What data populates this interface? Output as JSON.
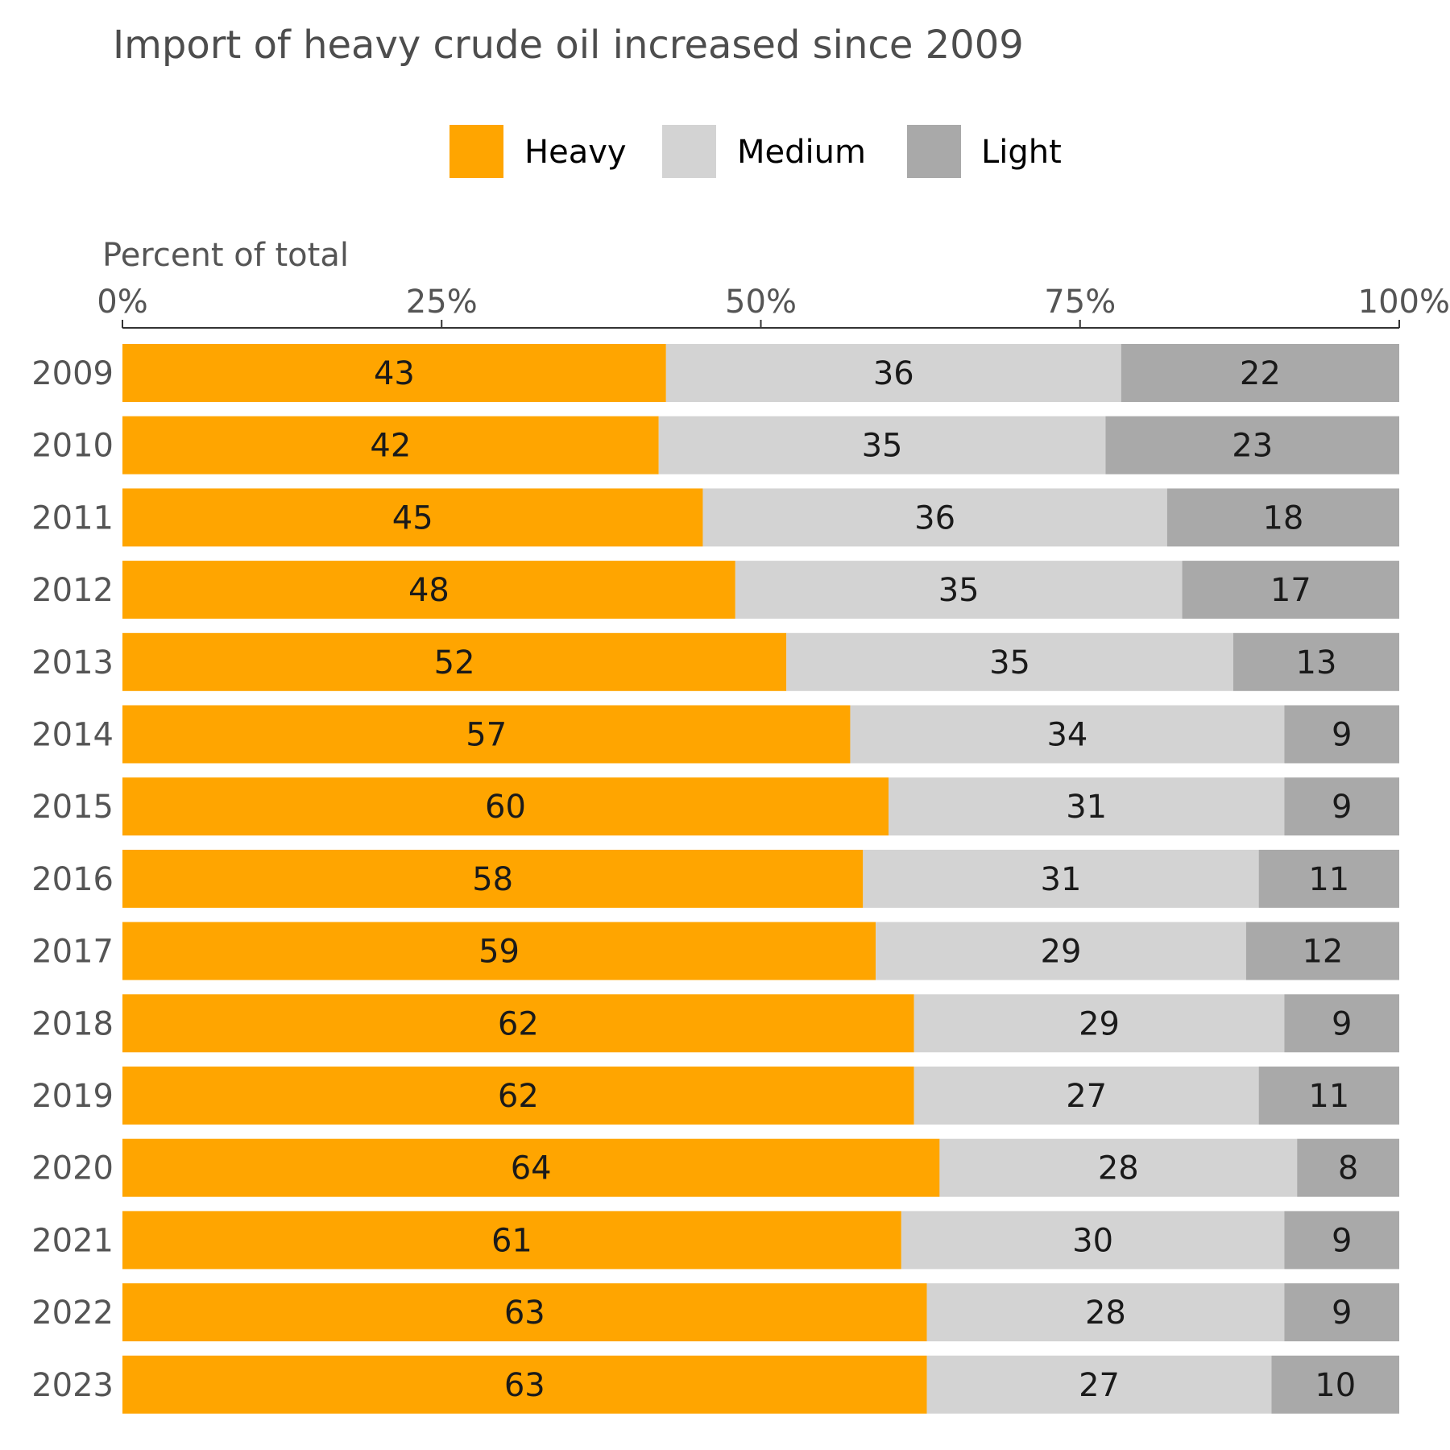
{
  "chart_data": {
    "type": "bar",
    "orientation": "horizontal",
    "stacked": true,
    "percent": true,
    "title": "Import of heavy crude oil increased since 2009",
    "axis_title": "Percent of total",
    "x_ticks": [
      "0%",
      "25%",
      "50%",
      "75%",
      "100%"
    ],
    "xlim": [
      0,
      100
    ],
    "legend_position": "top",
    "categories": [
      "2009",
      "2010",
      "2011",
      "2012",
      "2013",
      "2014",
      "2015",
      "2016",
      "2017",
      "2018",
      "2019",
      "2020",
      "2021",
      "2022",
      "2023"
    ],
    "series": [
      {
        "name": "Heavy",
        "color": "#FFA500",
        "values": [
          43,
          42,
          45,
          48,
          52,
          57,
          60,
          58,
          59,
          62,
          62,
          64,
          61,
          63,
          63
        ]
      },
      {
        "name": "Medium",
        "color": "#D3D3D3",
        "values": [
          36,
          35,
          36,
          35,
          35,
          34,
          31,
          31,
          29,
          29,
          27,
          28,
          30,
          28,
          27
        ]
      },
      {
        "name": "Light",
        "color": "#A9A9A9",
        "values": [
          22,
          23,
          18,
          17,
          13,
          9,
          9,
          11,
          12,
          9,
          11,
          8,
          9,
          9,
          10
        ]
      }
    ]
  }
}
